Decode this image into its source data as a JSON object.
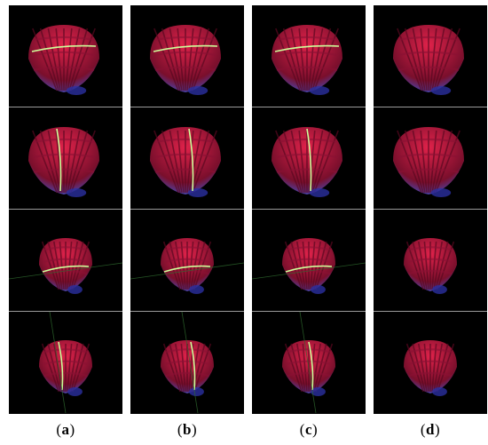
{
  "columns": [
    {
      "label_open": "(",
      "label_letter": "a",
      "label_close": ")"
    },
    {
      "label_open": "(",
      "label_letter": "b",
      "label_close": ")"
    },
    {
      "label_open": "(",
      "label_letter": "c",
      "label_close": ")"
    },
    {
      "label_open": "(",
      "label_letter": "d",
      "label_close": ")"
    }
  ],
  "rows": [
    {
      "laser": "horizontal",
      "view": "near"
    },
    {
      "laser": "vertical",
      "view": "near"
    },
    {
      "laser": "horizontal",
      "view": "far"
    },
    {
      "laser": "vertical",
      "view": "far"
    }
  ],
  "colors": {
    "background": "#000000",
    "shell_red": "#e0224a",
    "shell_dark": "#7a0f2c",
    "shell_blue": "#3b4fc8",
    "laser_line": "#cfff9a",
    "separator": "#9a9a9a"
  }
}
